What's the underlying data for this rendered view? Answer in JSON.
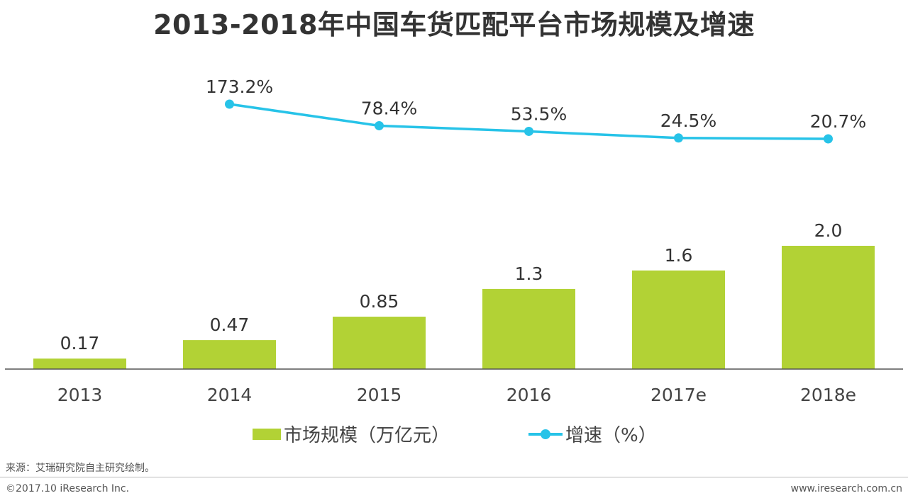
{
  "chart_data": {
    "type": "bar+line",
    "title": "2013-2018年中国车货匹配平台市场规模及增速",
    "categories": [
      "2013",
      "2014",
      "2015",
      "2016",
      "2017e",
      "2018e"
    ],
    "series": [
      {
        "name": "市场规模（万亿元）",
        "type": "bar",
        "values": [
          0.17,
          0.47,
          0.85,
          1.3,
          1.6,
          2.0
        ],
        "labels": [
          "0.17",
          "0.47",
          "0.85",
          "1.3",
          "1.6",
          "2.0"
        ],
        "color": "#b2d235"
      },
      {
        "name": "增速（%）",
        "type": "line",
        "values": [
          null,
          173.2,
          78.4,
          53.5,
          24.5,
          20.7
        ],
        "labels": [
          "",
          "173.2%",
          "78.4%",
          "53.5%",
          "24.5%",
          "20.7%"
        ],
        "color": "#27c3e8"
      }
    ],
    "legend": [
      "市场规模（万亿元）",
      "增速（%）"
    ],
    "legend_position": "bottom"
  },
  "footer": {
    "source": "来源：艾瑞研究院自主研究绘制。",
    "copyright": "©2017.10 iResearch Inc.",
    "website": "www.iresearch.com.cn"
  }
}
